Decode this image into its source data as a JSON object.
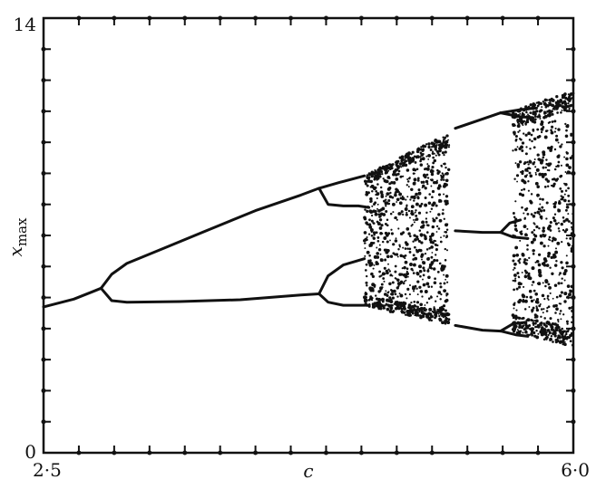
{
  "chart_data": {
    "type": "scatter",
    "title": "",
    "xlabel": "c",
    "ylabel": {
      "main": "x",
      "sub": "max"
    },
    "xlim": [
      2.5,
      6.0
    ],
    "ylim": [
      0,
      14
    ],
    "x_tick_labels": [
      {
        "value": 2.5,
        "label": "2·5"
      },
      {
        "value": 6.0,
        "label": "6·0"
      }
    ],
    "y_tick_labels": [
      {
        "value": 0,
        "label": "0"
      },
      {
        "value": 14,
        "label": "14"
      }
    ],
    "minor_ticks": {
      "x_count": 15,
      "y_count": 14
    },
    "grid": false,
    "colors": {
      "marks": "#111111",
      "background": "#ffffff"
    },
    "series": [
      {
        "kind": "curve",
        "points": [
          [
            2.5,
            4.7
          ],
          [
            2.7,
            4.95
          ],
          [
            2.83,
            5.2
          ],
          [
            2.88,
            5.3
          ]
        ]
      },
      {
        "kind": "curve",
        "points": [
          [
            2.88,
            5.3
          ],
          [
            2.95,
            5.75
          ],
          [
            3.05,
            6.1
          ],
          [
            3.3,
            6.6
          ],
          [
            3.6,
            7.2
          ],
          [
            3.9,
            7.8
          ],
          [
            4.2,
            8.3
          ],
          [
            4.32,
            8.52
          ],
          [
            4.45,
            8.7
          ],
          [
            4.62,
            8.92
          ]
        ]
      },
      {
        "kind": "curve",
        "points": [
          [
            2.88,
            5.3
          ],
          [
            2.95,
            4.9
          ],
          [
            3.05,
            4.85
          ],
          [
            3.4,
            4.87
          ],
          [
            3.8,
            4.93
          ],
          [
            4.2,
            5.08
          ],
          [
            4.32,
            5.12
          ]
        ]
      },
      {
        "kind": "curve",
        "points": [
          [
            4.32,
            8.52
          ],
          [
            4.38,
            8.0
          ],
          [
            4.48,
            7.95
          ],
          [
            4.58,
            7.95
          ],
          [
            4.65,
            7.9
          ]
        ]
      },
      {
        "kind": "curve",
        "points": [
          [
            4.32,
            5.12
          ],
          [
            4.38,
            5.7
          ],
          [
            4.48,
            6.05
          ],
          [
            4.62,
            6.25
          ]
        ]
      },
      {
        "kind": "curve",
        "points": [
          [
            4.32,
            5.12
          ],
          [
            4.38,
            4.85
          ],
          [
            4.48,
            4.75
          ],
          [
            4.65,
            4.75
          ]
        ]
      },
      {
        "kind": "curve",
        "points": [
          [
            5.22,
            10.45
          ],
          [
            5.4,
            10.75
          ],
          [
            5.52,
            10.95
          ]
        ]
      },
      {
        "kind": "curve",
        "points": [
          [
            5.52,
            10.95
          ],
          [
            5.65,
            11.05
          ],
          [
            5.75,
            11.1
          ]
        ]
      },
      {
        "kind": "curve",
        "points": [
          [
            5.52,
            10.95
          ],
          [
            5.65,
            10.82
          ],
          [
            5.72,
            10.8
          ]
        ]
      },
      {
        "kind": "curve",
        "points": [
          [
            5.22,
            7.15
          ],
          [
            5.4,
            7.1
          ],
          [
            5.52,
            7.1
          ]
        ]
      },
      {
        "kind": "curve",
        "points": [
          [
            5.52,
            7.1
          ],
          [
            5.58,
            7.4
          ],
          [
            5.65,
            7.5
          ]
        ]
      },
      {
        "kind": "curve",
        "points": [
          [
            5.52,
            7.1
          ],
          [
            5.6,
            6.95
          ],
          [
            5.7,
            6.9
          ]
        ]
      },
      {
        "kind": "curve",
        "points": [
          [
            5.22,
            4.1
          ],
          [
            5.4,
            3.95
          ],
          [
            5.52,
            3.92
          ]
        ]
      },
      {
        "kind": "curve",
        "points": [
          [
            5.52,
            3.92
          ],
          [
            5.6,
            4.15
          ],
          [
            5.68,
            4.2
          ]
        ]
      },
      {
        "kind": "curve",
        "points": [
          [
            5.52,
            3.92
          ],
          [
            5.62,
            3.8
          ],
          [
            5.7,
            3.75
          ]
        ]
      },
      {
        "kind": "scatter_band",
        "x_range": [
          4.62,
          5.18
        ],
        "y_low": [
          4.75,
          4.1
        ],
        "y_high": [
          8.95,
          10.3
        ],
        "density": 1100
      },
      {
        "kind": "scatter_band",
        "x_range": [
          5.6,
          6.0
        ],
        "y_low": [
          3.9,
          3.4
        ],
        "y_high": [
          11.0,
          11.7
        ],
        "density": 900
      }
    ]
  }
}
